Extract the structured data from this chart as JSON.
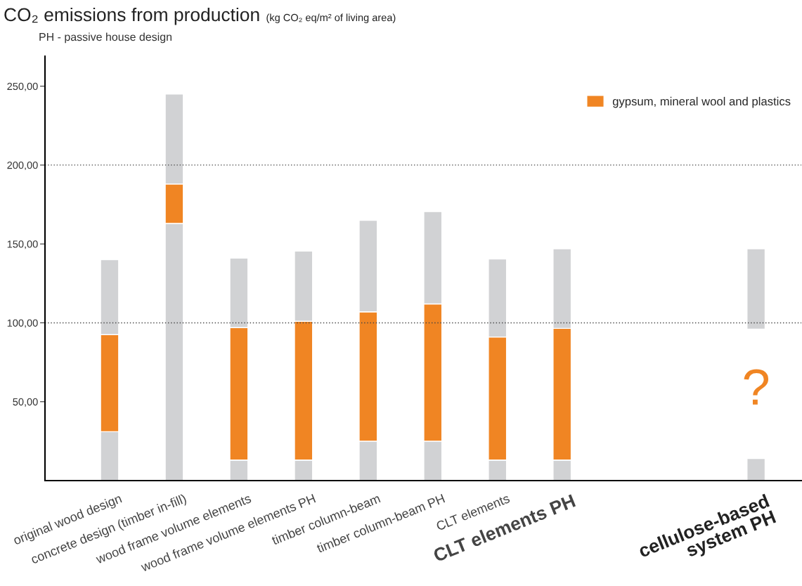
{
  "chart_data": {
    "type": "bar",
    "title": "CO₂ emissions from production",
    "ylabel": "(kg CO₂ eq/m² of living area)",
    "subtitle": "PH - passive house design",
    "categories": [
      "original wood design",
      "concrete design (timber in-fill)",
      "wood frame volume elements",
      "wood frame volume elements PH",
      "timber column-beam",
      "timber column-beam PH",
      "CLT elements",
      "CLT elements PH",
      null,
      null,
      "cellulose-based\nsystem PH"
    ],
    "series": [
      {
        "color": "#d1d2d4",
        "base": [
          0,
          0,
          0,
          0,
          0,
          0,
          0,
          0,
          null,
          null,
          0
        ],
        "values": [
          31,
          163,
          13,
          13,
          25,
          25,
          13,
          13,
          null,
          null,
          14
        ]
      },
      {
        "name": "gypsum, mineral wool and plastics",
        "color": "#f08523",
        "base": [
          31,
          163,
          13,
          13,
          25,
          25,
          13,
          13,
          null,
          null,
          null
        ],
        "values": [
          61.5,
          25,
          84,
          88,
          82,
          87,
          78,
          83.5,
          null,
          null,
          null
        ]
      },
      {
        "color": "#d1d2d4",
        "base": [
          92.5,
          188,
          97,
          101,
          107,
          112,
          91,
          96.5,
          null,
          null,
          96
        ],
        "values": [
          47.5,
          57,
          44,
          44.5,
          58,
          58.5,
          49.5,
          50.5,
          null,
          null,
          51
        ]
      }
    ],
    "ylim": [
      0,
      269
    ],
    "yticks": [
      {
        "value": 50,
        "label": "50,00"
      },
      {
        "value": 100,
        "label": "100,00"
      },
      {
        "value": 150,
        "label": "150,00"
      },
      {
        "value": 200,
        "label": "200,00"
      },
      {
        "value": 250,
        "label": "250,00"
      }
    ],
    "ref_lines": [
      {
        "axis": "y",
        "value": 100,
        "line_style": "dotted",
        "color": "#444444"
      },
      {
        "axis": "y",
        "value": 200,
        "line_style": "dotted",
        "color": "#444444"
      }
    ],
    "annotations": [
      "?"
    ],
    "legend": "top right",
    "grid": false
  }
}
